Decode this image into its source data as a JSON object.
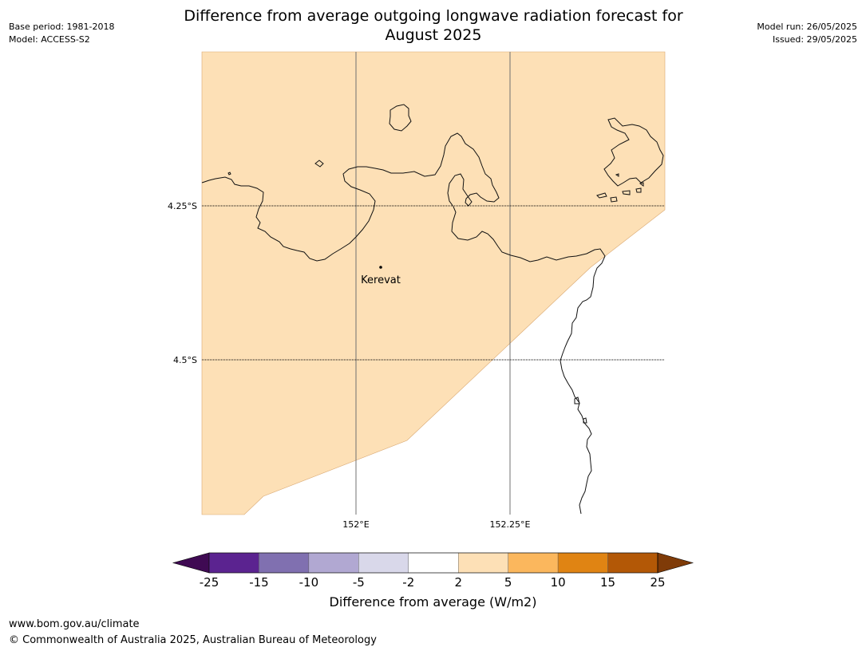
{
  "title_line1": "Difference from average outgoing longwave radiation forecast for",
  "title_line2": "August 2025",
  "meta_left": {
    "base_period": "Base period: 1981-2018",
    "model": "Model: ACCESS-S2"
  },
  "meta_right": {
    "model_run": "Model run: 26/05/2025",
    "issued": "Issued: 29/05/2025"
  },
  "map": {
    "place_label": "Kerevat",
    "lat_labels": [
      "4.25°S",
      "4.5°S"
    ],
    "lon_labels": [
      "152°E",
      "152.25°E"
    ],
    "fill_color": "#fde0b6",
    "fill_class_range": "2 to 5"
  },
  "colorbar": {
    "label": "Difference from average (W/m2)",
    "ticks": [
      "-25",
      "-15",
      "-10",
      "-5",
      "-2",
      "2",
      "5",
      "10",
      "15",
      "25"
    ],
    "colors": [
      "#3f0a53",
      "#5b2390",
      "#8070b0",
      "#b1a8d2",
      "#d9d8ea",
      "#ffffff",
      "#fde0b6",
      "#fbb75d",
      "#e08413",
      "#b35806",
      "#7f3b08"
    ]
  },
  "footer": {
    "url": "www.bom.gov.au/climate",
    "copyright": "© Commonwealth of Australia 2025, Australian Bureau of Meteorology"
  }
}
